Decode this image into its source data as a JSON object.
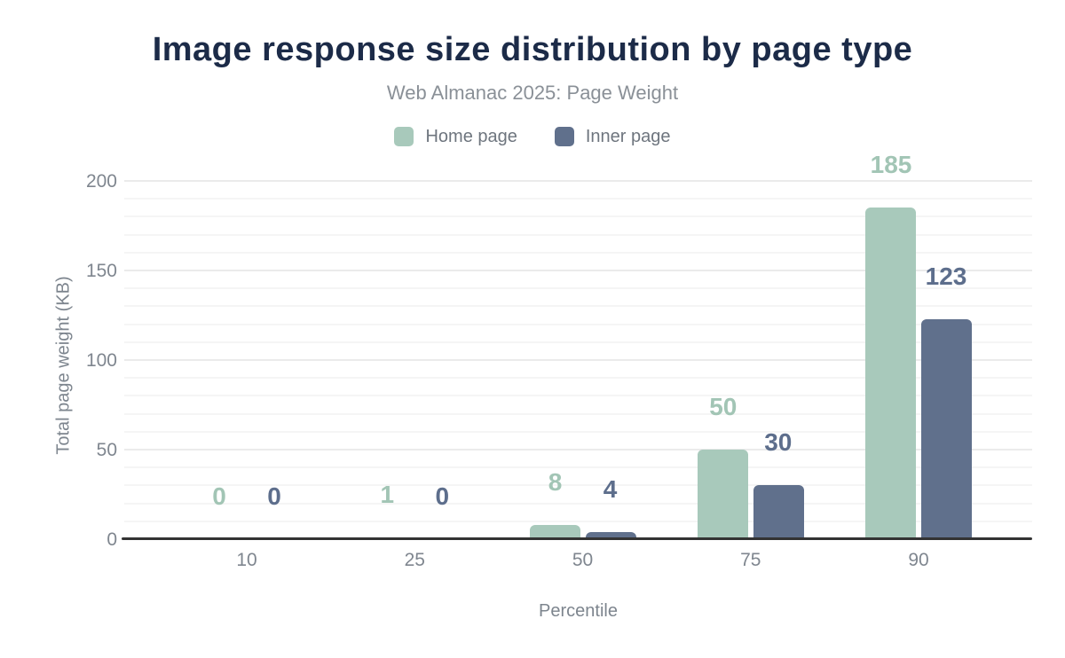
{
  "title": "Image response size distribution by page type",
  "subtitle": "Web Almanac 2025: Page Weight",
  "legend": [
    {
      "label": "Home page",
      "color": "#a8c9bb"
    },
    {
      "label": "Inner page",
      "color": "#60708c"
    }
  ],
  "chart_data": {
    "type": "bar",
    "categories": [
      "10",
      "25",
      "50",
      "75",
      "90"
    ],
    "series": [
      {
        "name": "Home page",
        "color": "#a8c9bb",
        "label_color": "#a2c5b5",
        "values": [
          0,
          1,
          8,
          50,
          185
        ]
      },
      {
        "name": "Inner page",
        "color": "#60708c",
        "label_color": "#5d6e8c",
        "values": [
          0,
          0,
          4,
          30,
          123
        ]
      }
    ],
    "title": "Image response size distribution by page type",
    "subtitle": "Web Almanac 2025: Page Weight",
    "xlabel": "Percentile",
    "ylabel": "Total page weight (KB)",
    "ylim": [
      0,
      200
    ],
    "yticks": [
      0,
      50,
      100,
      150,
      200
    ],
    "grid": "horizontal minor lines every 10 KB, major every 50 KB",
    "legend_position": "top",
    "data_labels": true
  },
  "colors": {
    "title": "#1c2b48",
    "axis_line": "#333333",
    "axis_text": "#7f868f",
    "gridline_minor": "#f5f5f5",
    "gridline_major": "#ebebeb",
    "background": "#ffffff"
  }
}
